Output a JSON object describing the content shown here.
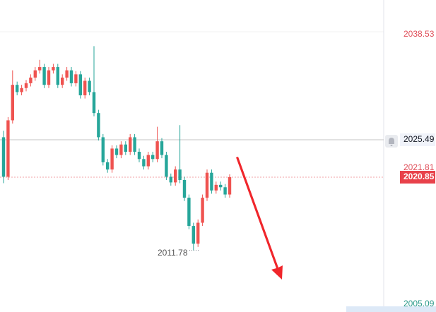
{
  "chart_data": {
    "type": "candlestick",
    "up_color": "#ef5350",
    "down_color": "#26a69a",
    "ylim": [
      2004.13,
      2042.82
    ],
    "yticks": [
      2038.53,
      2005.09
    ],
    "crosshair_price": 2025.49,
    "line_price": 2021.81,
    "last_price": 2020.85,
    "low_label": 2011.78,
    "open": [
      2025.8,
      2020.9,
      2027.9,
      2032.3,
      2031.4,
      2031.9,
      2032.5,
      2033.2,
      2034.1,
      2034.5,
      2032.3,
      2034.1,
      2034.5,
      2032.3,
      2033.2,
      2034.1,
      2032.5,
      2033.6,
      2031.0,
      2032.8,
      2031.4,
      2028.8,
      2025.8,
      2022.7,
      2021.8,
      2024.4,
      2023.6,
      2024.9,
      2024.0,
      2025.8,
      2024.0,
      2023.1,
      2022.2,
      2023.6,
      2023.1,
      2025.3,
      2023.6,
      2020.9,
      2020.2,
      2021.8,
      2020.5,
      2018.3,
      2014.8,
      2012.6,
      2015.2,
      2018.3,
      2021.4,
      2019.2,
      2019.9,
      2019.6,
      2018.7
    ],
    "high": [
      2026.6,
      2028.3,
      2034.1,
      2032.7,
      2032.3,
      2032.9,
      2033.6,
      2034.5,
      2035.4,
      2034.9,
      2034.5,
      2034.9,
      2034.9,
      2033.6,
      2034.5,
      2034.5,
      2034.0,
      2034.0,
      2033.2,
      2033.2,
      2037.1,
      2029.2,
      2026.2,
      2023.1,
      2024.8,
      2024.8,
      2025.3,
      2025.3,
      2026.2,
      2026.2,
      2024.4,
      2023.5,
      2024.0,
      2024.0,
      2027.1,
      2025.7,
      2024.0,
      2021.3,
      2022.2,
      2027.3,
      2020.9,
      2018.7,
      2015.2,
      2015.6,
      2018.7,
      2021.8,
      2021.8,
      2020.3,
      2020.3,
      2020.0,
      2021.2
    ],
    "low": [
      2020.1,
      2020.5,
      2027.5,
      2031.0,
      2031.0,
      2031.5,
      2032.1,
      2032.8,
      2033.7,
      2031.9,
      2031.9,
      2033.7,
      2031.9,
      2031.9,
      2032.8,
      2032.1,
      2032.1,
      2030.6,
      2030.6,
      2031.0,
      2028.4,
      2025.4,
      2022.3,
      2021.4,
      2021.4,
      2023.2,
      2023.2,
      2023.6,
      2023.6,
      2023.6,
      2022.7,
      2021.8,
      2021.8,
      2022.7,
      2022.7,
      2023.2,
      2020.5,
      2019.8,
      2019.8,
      2020.1,
      2017.9,
      2014.4,
      2011.78,
      2012.2,
      2014.8,
      2017.9,
      2018.8,
      2018.8,
      2019.2,
      2018.3,
      2018.3
    ],
    "close": [
      2020.9,
      2027.9,
      2032.3,
      2031.4,
      2031.9,
      2032.5,
      2033.2,
      2034.1,
      2034.5,
      2032.3,
      2034.1,
      2034.5,
      2032.3,
      2033.2,
      2034.1,
      2032.5,
      2033.6,
      2031.0,
      2032.8,
      2031.4,
      2028.8,
      2025.8,
      2022.7,
      2021.8,
      2024.4,
      2023.6,
      2024.9,
      2024.0,
      2025.8,
      2024.0,
      2023.1,
      2022.2,
      2023.6,
      2023.1,
      2025.3,
      2023.6,
      2020.9,
      2020.2,
      2021.8,
      2020.5,
      2018.3,
      2014.8,
      2012.6,
      2015.2,
      2018.3,
      2021.4,
      2019.2,
      2019.9,
      2019.6,
      2018.7,
      2020.85
    ]
  }
}
